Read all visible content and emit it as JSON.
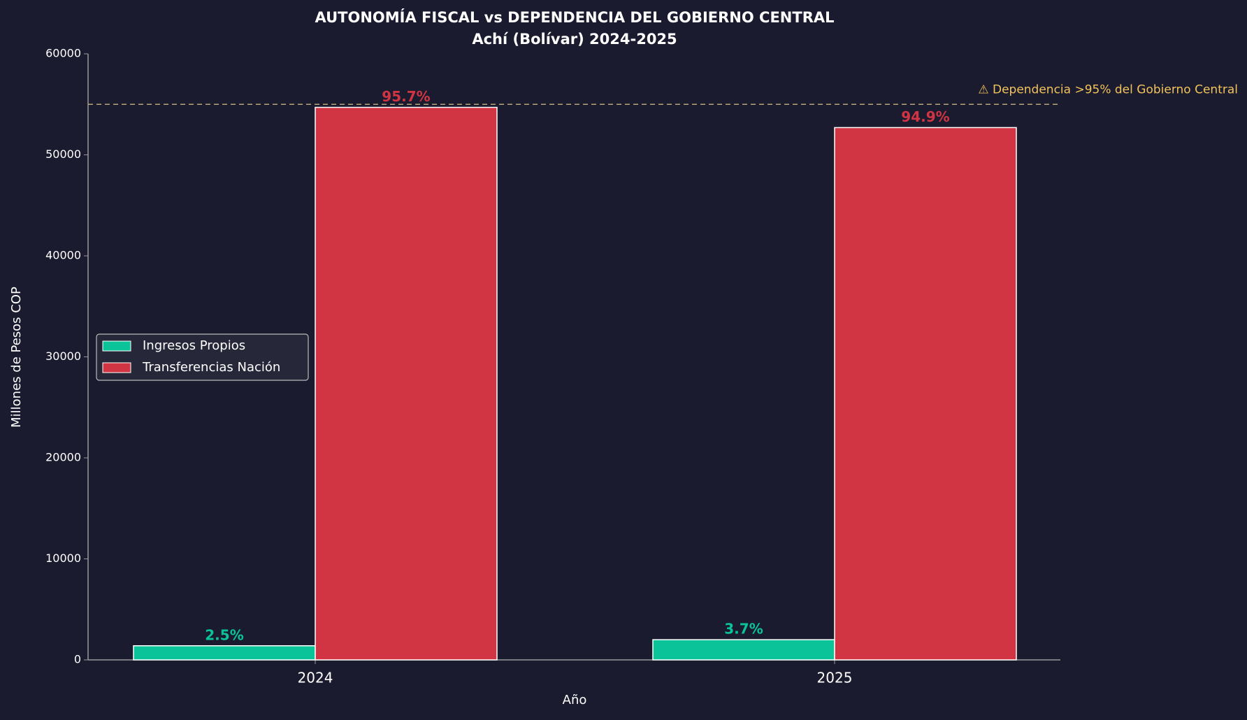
{
  "chart_data": {
    "type": "bar",
    "title": "AUTONOMÍA FISCAL vs DEPENDENCIA DEL GOBIERNO CENTRAL",
    "subtitle": "Achí (Bolívar) 2024-2025",
    "x_label": "Año",
    "y_label": "Millones de Pesos COP",
    "categories": [
      "2024",
      "2025"
    ],
    "series": [
      {
        "name": "Ingresos Propios",
        "color": "#0bc398",
        "values": [
          1400,
          2000
        ],
        "share_labels": [
          "2.5%",
          "3.7%"
        ]
      },
      {
        "name": "Transferencias Nación",
        "color": "#d13543",
        "values": [
          54700,
          52700
        ],
        "share_labels": [
          "95.7%",
          "94.9%"
        ]
      }
    ],
    "ylim": [
      0,
      60000
    ],
    "yticks": [
      0,
      10000,
      20000,
      30000,
      40000,
      50000,
      60000
    ],
    "threshold": {
      "value": 55000,
      "label": "⚠ Dependencia >95% del Gobierno Central",
      "color": "#f2c35b"
    },
    "legend": "center-left",
    "grid": false
  }
}
